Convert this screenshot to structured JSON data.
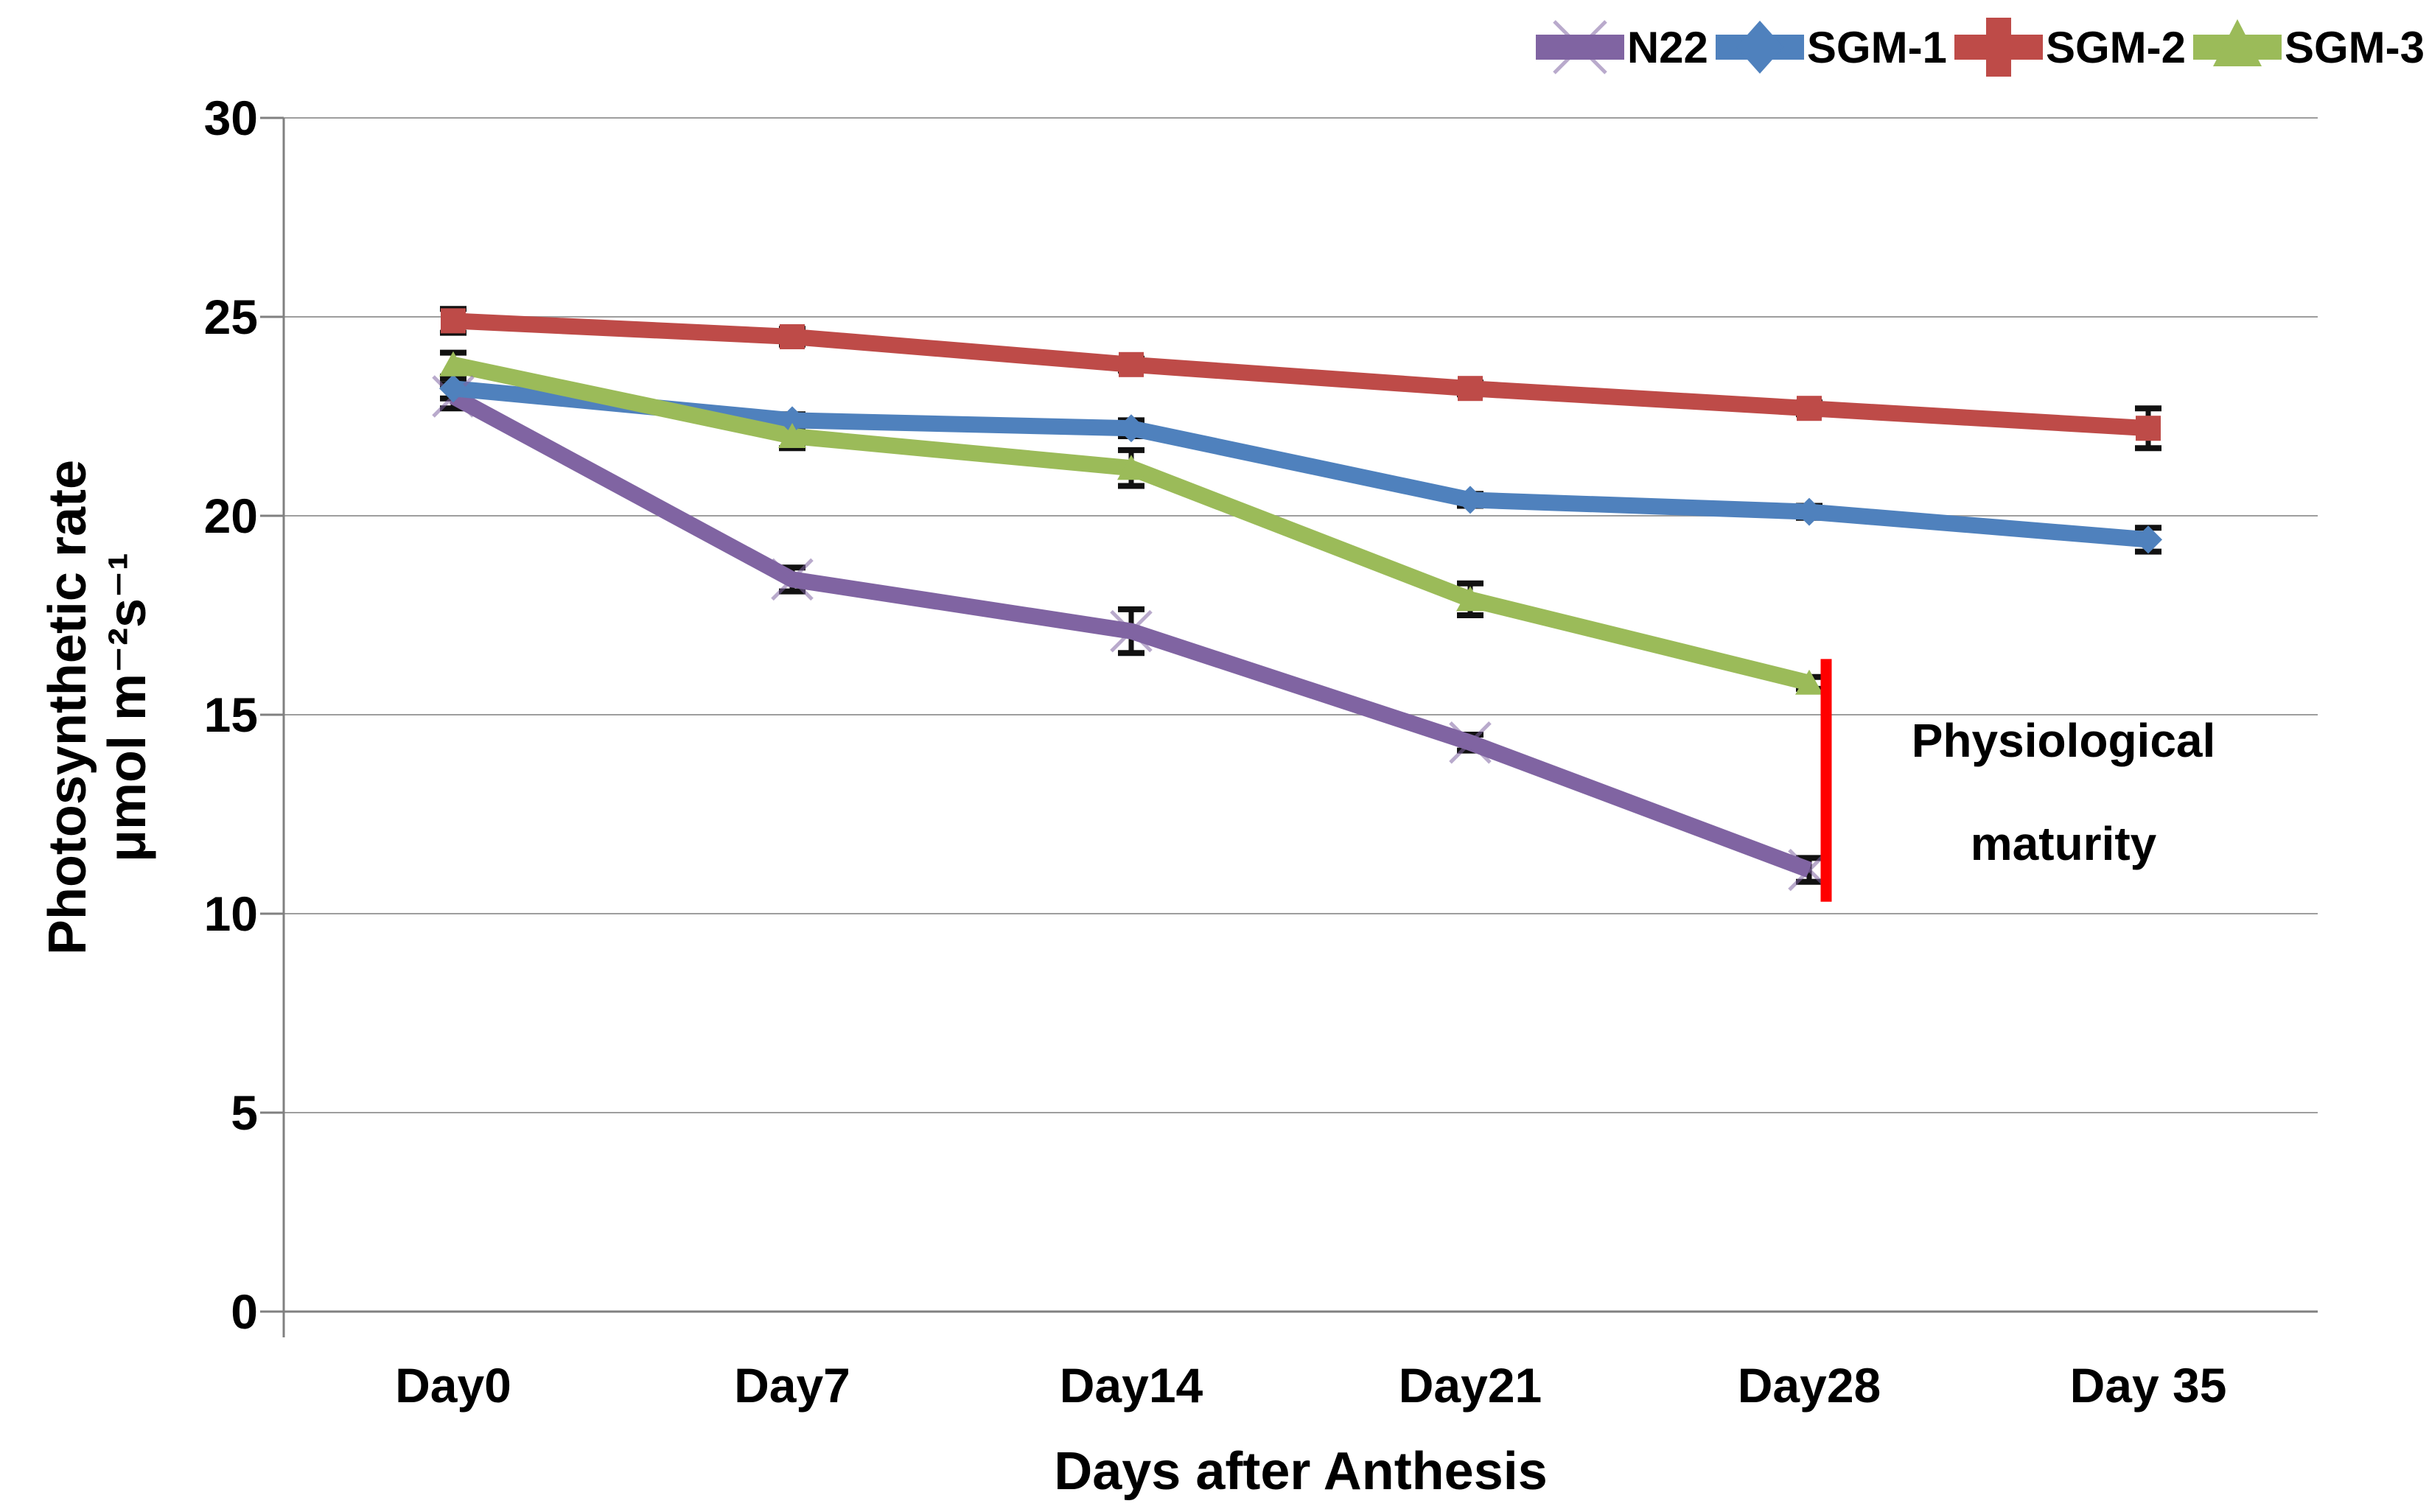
{
  "chart_data": {
    "type": "line",
    "title": "",
    "xlabel": "Days after Anthesis",
    "ylabel_line1": "Photosynthetic rate",
    "ylabel_line2": "μmol m⁻²s⁻¹",
    "categories": [
      "Day0",
      "Day7",
      "Day14",
      "Day21",
      "Day28",
      "Day 35"
    ],
    "ylim": [
      0,
      30
    ],
    "yticks": [
      0,
      5,
      10,
      15,
      20,
      25,
      30
    ],
    "ytick_labels": [
      "0",
      "5",
      "10",
      "15",
      "20",
      "25",
      "30"
    ],
    "grid": true,
    "legend_position": "top-right",
    "axis_color": "#808080",
    "grid_color": "#9e9e9e",
    "error_bar_color": "#111111",
    "series": [
      {
        "name": "N22",
        "color": "#8064A2",
        "marker": "x",
        "values": [
          23.0,
          18.4,
          17.1,
          14.3,
          11.1,
          null
        ],
        "errors": [
          0.3,
          0.3,
          0.55,
          0.2,
          0.3,
          null
        ]
      },
      {
        "name": "SGM-1",
        "color": "#4F81BD",
        "marker": "diamond",
        "values": [
          23.2,
          22.4,
          22.2,
          20.4,
          20.1,
          19.4
        ],
        "errors": [
          0.25,
          0.15,
          0.2,
          0.15,
          0.15,
          0.3
        ]
      },
      {
        "name": "SGM-2",
        "color": "#BE4B48",
        "marker": "square",
        "values": [
          24.9,
          24.5,
          23.8,
          23.2,
          22.7,
          22.2
        ],
        "errors": [
          0.3,
          0.2,
          0.15,
          0.15,
          0.15,
          0.5
        ]
      },
      {
        "name": "SGM-3",
        "color": "#9BBB59",
        "marker": "triangle",
        "values": [
          23.8,
          22.0,
          21.2,
          17.9,
          15.8,
          null
        ],
        "errors": [
          0.3,
          0.3,
          0.45,
          0.4,
          0.15,
          null
        ]
      }
    ],
    "annotation": {
      "text_line1": "Physiological",
      "text_line2": "maturity",
      "line_color": "#FF0000",
      "x_index": 4.05,
      "y_from": 10.3,
      "y_to": 16.4
    }
  }
}
